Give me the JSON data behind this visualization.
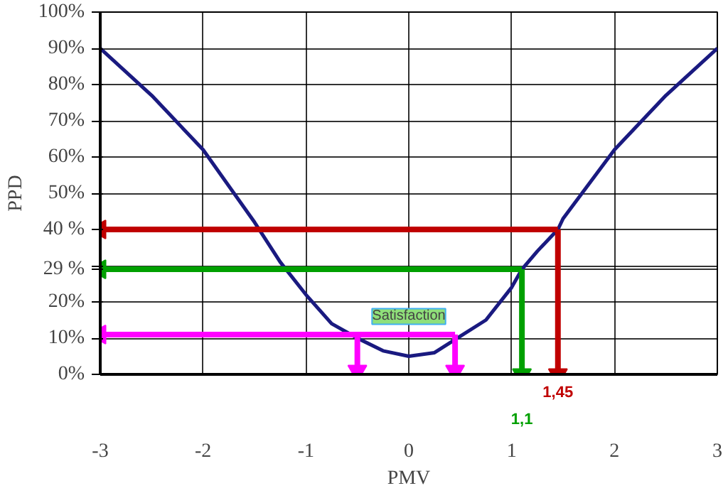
{
  "chart_data": {
    "type": "line",
    "xlabel": "PMV",
    "ylabel": "PPD",
    "xlim": [
      -3,
      3
    ],
    "ylim": [
      0,
      100
    ],
    "xticks": [
      -3,
      -2,
      -1,
      0,
      1,
      2,
      3
    ],
    "yticks": [
      {
        "value": 0,
        "label": "0%"
      },
      {
        "value": 10,
        "label": "10%"
      },
      {
        "value": 20,
        "label": "20%"
      },
      {
        "value": 29,
        "label": "29 %"
      },
      {
        "value": 30,
        "label": null
      },
      {
        "value": 40,
        "label": "40 %"
      },
      {
        "value": 50,
        "label": "50%"
      },
      {
        "value": 60,
        "label": "60%"
      },
      {
        "value": 70,
        "label": "70%"
      },
      {
        "value": 80,
        "label": "80%"
      },
      {
        "value": 90,
        "label": "90%"
      },
      {
        "value": 100,
        "label": "100%"
      }
    ],
    "grid": true,
    "line_style": "solid",
    "series": [
      {
        "color": "#1a1a80",
        "x": [
          -3,
          -2.5,
          -2,
          -1.5,
          -1.25,
          -1,
          -0.75,
          -0.5,
          -0.25,
          0,
          0.25,
          0.5,
          0.75,
          1,
          1.1,
          1.25,
          1.45,
          1.5,
          2,
          2.5,
          3
        ],
        "values": [
          90,
          77,
          62,
          42,
          31,
          22,
          14,
          10,
          6.5,
          5,
          6,
          10.5,
          15,
          24,
          29,
          34,
          40,
          43,
          62,
          77,
          90
        ]
      },
      {
        "color": "#c00000",
        "x": [
          1.45,
          -3
        ],
        "values": [
          40,
          40
        ]
      },
      {
        "color": "#c00000",
        "x": [
          1.45,
          1.45
        ],
        "values": [
          40,
          0
        ]
      },
      {
        "color": "#00a000",
        "x": [
          1.1,
          -3
        ],
        "values": [
          29,
          29
        ]
      },
      {
        "color": "#00a000",
        "x": [
          1.1,
          1.1
        ],
        "values": [
          29,
          0
        ]
      },
      {
        "color": "#ff00ff",
        "x": [
          0.45,
          -3
        ],
        "values": [
          11,
          11
        ]
      },
      {
        "color": "#ff00ff",
        "x": [
          -0.5,
          -0.5
        ],
        "values": [
          11,
          1
        ]
      },
      {
        "color": "#ff00ff",
        "x": [
          0.45,
          0.45
        ],
        "values": [
          11,
          1
        ]
      }
    ],
    "annotations": [
      {
        "text": "1,45",
        "x": 1.45,
        "y": 0
      },
      {
        "text": "1,1",
        "x": 1.1,
        "y": 0
      },
      "Satisfaction"
    ]
  }
}
